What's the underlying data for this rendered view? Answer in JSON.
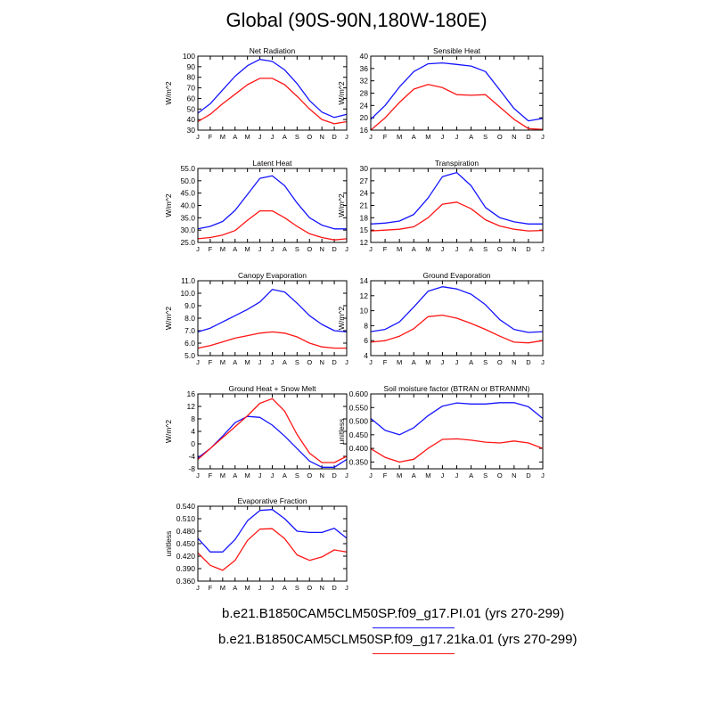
{
  "title": "Global (90S-90N,180W-180E)",
  "series_colors": [
    "#1414ff",
    "#ff1414"
  ],
  "legend": [
    {
      "label": "b.e21.B1850CAM5CLM50SP.f09_g17.PI.01 (yrs 270-299)",
      "color": "#1414ff"
    },
    {
      "label": "b.e21.B1850CAM5CLM50SP.f09_g17.21ka.01 (yrs 270-299)",
      "color": "#ff1414"
    }
  ],
  "chart_data": [
    {
      "type": "line",
      "title": "Net Radiation",
      "ylabel": "W/m^2",
      "categories": [
        "J",
        "F",
        "M",
        "A",
        "M",
        "J",
        "J",
        "A",
        "S",
        "O",
        "N",
        "D",
        "J"
      ],
      "ylim": [
        30,
        100
      ],
      "yticks": [
        30,
        40,
        50,
        60,
        70,
        80,
        90,
        100
      ],
      "ytick_labels": [
        "30",
        "40",
        "50",
        "60",
        "70",
        "80",
        "90",
        "100"
      ],
      "series": [
        {
          "name": "PI.01",
          "values": [
            46,
            55,
            68,
            81,
            91,
            97,
            95,
            87,
            74,
            58,
            47,
            42,
            45
          ]
        },
        {
          "name": "21ka.01",
          "values": [
            38,
            45,
            55,
            64,
            73,
            79,
            79,
            73,
            62,
            50,
            40,
            36,
            38
          ]
        }
      ]
    },
    {
      "type": "line",
      "title": "Sensible Heat",
      "ylabel": "W/m^2",
      "categories": [
        "J",
        "F",
        "M",
        "A",
        "M",
        "J",
        "J",
        "A",
        "S",
        "O",
        "N",
        "D",
        "J"
      ],
      "ylim": [
        16,
        40
      ],
      "yticks": [
        16,
        20,
        24,
        28,
        32,
        36,
        40
      ],
      "ytick_labels": [
        "16",
        "20",
        "24",
        "28",
        "32",
        "36",
        "40"
      ],
      "series": [
        {
          "name": "PI.01",
          "values": [
            19.5,
            24,
            30,
            35,
            37.5,
            37.8,
            37.3,
            36.8,
            35,
            29,
            23,
            19,
            19.8
          ]
        },
        {
          "name": "21ka.01",
          "values": [
            16,
            20,
            25,
            29.3,
            30.8,
            29.8,
            27.5,
            27.3,
            27.5,
            23.5,
            19.5,
            16.5,
            16.2
          ]
        }
      ]
    },
    {
      "type": "line",
      "title": "Latent Heat",
      "ylabel": "W/m^2",
      "categories": [
        "J",
        "F",
        "M",
        "A",
        "M",
        "J",
        "J",
        "A",
        "S",
        "O",
        "N",
        "D",
        "J"
      ],
      "ylim": [
        25,
        55
      ],
      "yticks": [
        25,
        30,
        35,
        40,
        45,
        50,
        55
      ],
      "ytick_labels": [
        "25.0",
        "30.0",
        "35.0",
        "40.0",
        "45.0",
        "50.0",
        "55.0"
      ],
      "series": [
        {
          "name": "PI.01",
          "values": [
            30.5,
            31.5,
            33.5,
            38,
            44.5,
            51,
            52,
            48,
            41,
            35,
            32,
            30.5,
            30.5
          ]
        },
        {
          "name": "21ka.01",
          "values": [
            26.5,
            27,
            28,
            29.8,
            34,
            37.8,
            37.8,
            35,
            31.5,
            28.5,
            27,
            26,
            26.5
          ]
        }
      ]
    },
    {
      "type": "line",
      "title": "Transpiration",
      "ylabel": "W/m^2",
      "categories": [
        "J",
        "F",
        "M",
        "A",
        "M",
        "J",
        "J",
        "A",
        "S",
        "O",
        "N",
        "D",
        "J"
      ],
      "ylim": [
        12,
        30
      ],
      "yticks": [
        12,
        15,
        18,
        21,
        24,
        27,
        30
      ],
      "ytick_labels": [
        "12",
        "15",
        "18",
        "21",
        "24",
        "27",
        "30"
      ],
      "series": [
        {
          "name": "PI.01",
          "values": [
            16.5,
            16.7,
            17.2,
            18.8,
            22.8,
            28,
            29,
            25.8,
            20.5,
            18,
            17,
            16.5,
            16.5
          ]
        },
        {
          "name": "21ka.01",
          "values": [
            14.8,
            15,
            15.2,
            15.8,
            18,
            21.3,
            21.8,
            20.2,
            17.5,
            16,
            15.2,
            14.8,
            14.9
          ]
        }
      ]
    },
    {
      "type": "line",
      "title": "Canopy Evaporation",
      "ylabel": "W/m^2",
      "categories": [
        "J",
        "F",
        "M",
        "A",
        "M",
        "J",
        "J",
        "A",
        "S",
        "O",
        "N",
        "D",
        "J"
      ],
      "ylim": [
        5,
        11
      ],
      "yticks": [
        5,
        6,
        7,
        8,
        9,
        10,
        11
      ],
      "ytick_labels": [
        "5.0",
        "6.0",
        "7.0",
        "8.0",
        "9.0",
        "10.0",
        "11.0"
      ],
      "series": [
        {
          "name": "PI.01",
          "values": [
            6.9,
            7.2,
            7.7,
            8.2,
            8.7,
            9.3,
            10.3,
            10.1,
            9.2,
            8.2,
            7.5,
            7.0,
            6.9
          ]
        },
        {
          "name": "21ka.01",
          "values": [
            5.6,
            5.8,
            6.1,
            6.4,
            6.6,
            6.8,
            6.9,
            6.8,
            6.5,
            6.0,
            5.7,
            5.6,
            5.6
          ]
        }
      ]
    },
    {
      "type": "line",
      "title": "Ground Evaporation",
      "ylabel": "W/m^2",
      "categories": [
        "J",
        "F",
        "M",
        "A",
        "M",
        "J",
        "J",
        "A",
        "S",
        "O",
        "N",
        "D",
        "J"
      ],
      "ylim": [
        4,
        14
      ],
      "yticks": [
        4,
        6,
        8,
        10,
        12,
        14
      ],
      "ytick_labels": [
        "4",
        "6",
        "8",
        "10",
        "12",
        "14"
      ],
      "series": [
        {
          "name": "PI.01",
          "values": [
            7.2,
            7.5,
            8.5,
            10.5,
            12.6,
            13.2,
            12.9,
            12.2,
            10.8,
            8.8,
            7.5,
            7.1,
            7.2
          ]
        },
        {
          "name": "21ka.01",
          "values": [
            5.8,
            6.0,
            6.6,
            7.6,
            9.2,
            9.4,
            9.0,
            8.3,
            7.5,
            6.6,
            5.8,
            5.7,
            6.0
          ]
        }
      ]
    },
    {
      "type": "line",
      "title": "Ground Heat + Snow Melt",
      "ylabel": "W/m^2",
      "categories": [
        "J",
        "F",
        "M",
        "A",
        "M",
        "J",
        "J",
        "A",
        "S",
        "O",
        "N",
        "D",
        "J"
      ],
      "ylim": [
        -8,
        16
      ],
      "yticks": [
        -8,
        -4,
        0,
        4,
        8,
        12,
        16
      ],
      "ytick_labels": [
        "-8",
        "-4",
        "0",
        "4",
        "8",
        "12",
        "16"
      ],
      "series": [
        {
          "name": "PI.01",
          "values": [
            -4.5,
            -1.5,
            2.5,
            6.8,
            8.8,
            8.5,
            6,
            2.5,
            -1.5,
            -5.5,
            -7.5,
            -7.5,
            -5
          ]
        },
        {
          "name": "21ka.01",
          "values": [
            -5,
            -1.5,
            2,
            5.5,
            9,
            13,
            14.5,
            10.5,
            3,
            -3,
            -6,
            -6,
            -4
          ]
        }
      ]
    },
    {
      "type": "line",
      "title": "Soil moisture factor (BTRAN or BTRANMN)",
      "ylabel": "unitless",
      "categories": [
        "J",
        "F",
        "M",
        "A",
        "M",
        "J",
        "J",
        "A",
        "S",
        "O",
        "N",
        "D",
        "J"
      ],
      "ylim": [
        0.325,
        0.6
      ],
      "yticks": [
        0.35,
        0.4,
        0.45,
        0.5,
        0.55,
        0.6
      ],
      "ytick_labels": [
        "0.350",
        "0.400",
        "0.450",
        "0.500",
        "0.550",
        "0.600"
      ],
      "series": [
        {
          "name": "PI.01",
          "values": [
            0.51,
            0.466,
            0.45,
            0.476,
            0.52,
            0.555,
            0.567,
            0.563,
            0.563,
            0.568,
            0.568,
            0.553,
            0.51
          ]
        },
        {
          "name": "21ka.01",
          "values": [
            0.399,
            0.367,
            0.35,
            0.36,
            0.4,
            0.433,
            0.435,
            0.43,
            0.423,
            0.42,
            0.427,
            0.42,
            0.4
          ]
        }
      ]
    },
    {
      "type": "line",
      "title": "Evaporative Fraction",
      "ylabel": "unitless",
      "categories": [
        "J",
        "F",
        "M",
        "A",
        "M",
        "J",
        "J",
        "A",
        "S",
        "O",
        "N",
        "D",
        "J"
      ],
      "ylim": [
        0.36,
        0.54
      ],
      "yticks": [
        0.36,
        0.39,
        0.42,
        0.45,
        0.48,
        0.51,
        0.54
      ],
      "ytick_labels": [
        "0.360",
        "0.390",
        "0.420",
        "0.450",
        "0.480",
        "0.510",
        "0.540"
      ],
      "series": [
        {
          "name": "PI.01",
          "values": [
            0.463,
            0.43,
            0.43,
            0.46,
            0.505,
            0.53,
            0.532,
            0.51,
            0.48,
            0.477,
            0.477,
            0.487,
            0.463
          ]
        },
        {
          "name": "21ka.01",
          "values": [
            0.428,
            0.398,
            0.386,
            0.41,
            0.458,
            0.485,
            0.486,
            0.462,
            0.423,
            0.41,
            0.418,
            0.435,
            0.43
          ]
        }
      ]
    }
  ]
}
